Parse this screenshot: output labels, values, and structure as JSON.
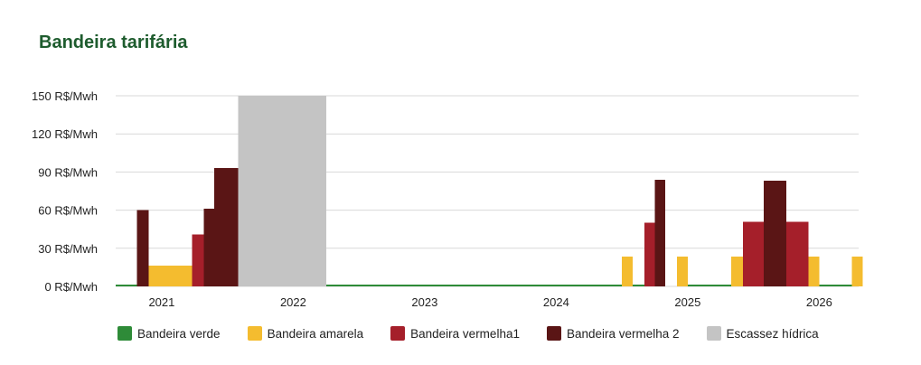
{
  "chart_data": {
    "type": "bar",
    "title": "Bandeira tarifária",
    "ylim": [
      0,
      150
    ],
    "y_ticks": [
      {
        "value": 0,
        "label": "0 R$/Mwh"
      },
      {
        "value": 30,
        "label": "30 R$/Mwh"
      },
      {
        "value": 60,
        "label": "60 R$/Mwh"
      },
      {
        "value": 90,
        "label": "90 R$/Mwh"
      },
      {
        "value": 120,
        "label": "120 R$/Mwh"
      },
      {
        "value": 150,
        "label": "150 R$/Mwh"
      }
    ],
    "x_ticks": [
      {
        "value": 2021,
        "label": "2021"
      },
      {
        "value": 2022,
        "label": "2022"
      },
      {
        "value": 2023,
        "label": "2023"
      },
      {
        "value": 2024,
        "label": "2024"
      },
      {
        "value": 2025,
        "label": "2025"
      },
      {
        "value": 2026,
        "label": "2026"
      }
    ],
    "xlim": [
      2020.65,
      2026.3
    ],
    "grid": true,
    "legend_position": "bottom",
    "series": [
      {
        "name": "Bandeira verde",
        "color": "#2e8b38",
        "segments": [
          {
            "start": 2020.65,
            "end": 2020.81,
            "value": 1.5
          },
          {
            "start": 2022.25,
            "end": 2024.5,
            "value": 1.5
          },
          {
            "start": 2024.58,
            "end": 2024.67,
            "value": 1.5
          },
          {
            "start": 2025.0,
            "end": 2025.33,
            "value": 1.5
          },
          {
            "start": 2026.0,
            "end": 2026.25,
            "value": 1.5
          }
        ]
      },
      {
        "name": "Bandeira amarela",
        "color": "#f4bc2f",
        "segments": [
          {
            "start": 2020.9,
            "end": 2021.23,
            "value": 16.5
          },
          {
            "start": 2024.5,
            "end": 2024.58,
            "value": 23.5
          },
          {
            "start": 2024.92,
            "end": 2025.0,
            "value": 23.5
          },
          {
            "start": 2025.33,
            "end": 2025.42,
            "value": 23.5
          },
          {
            "start": 2025.92,
            "end": 2026.0,
            "value": 23.5
          },
          {
            "start": 2026.25,
            "end": 2026.33,
            "value": 23.5
          }
        ]
      },
      {
        "name": "Bandeira vermelha1",
        "color": "#a51f2a",
        "segments": [
          {
            "start": 2021.23,
            "end": 2021.32,
            "value": 41
          },
          {
            "start": 2024.67,
            "end": 2024.75,
            "value": 50
          },
          {
            "start": 2025.42,
            "end": 2025.58,
            "value": 51
          },
          {
            "start": 2025.75,
            "end": 2025.92,
            "value": 51
          }
        ]
      },
      {
        "name": "Bandeira vermelha 2",
        "color": "#5a1515",
        "segments": [
          {
            "start": 2020.81,
            "end": 2020.9,
            "value": 60
          },
          {
            "start": 2021.32,
            "end": 2021.4,
            "value": 61
          },
          {
            "start": 2021.4,
            "end": 2021.49,
            "value": 93
          },
          {
            "start": 2021.49,
            "end": 2021.58,
            "value": 93
          },
          {
            "start": 2024.75,
            "end": 2024.83,
            "value": 84
          },
          {
            "start": 2025.58,
            "end": 2025.75,
            "value": 83
          }
        ]
      },
      {
        "name": "Escassez hídrica",
        "color": "#c4c4c4",
        "segments": [
          {
            "start": 2021.58,
            "end": 2022.25,
            "value": 150
          }
        ]
      }
    ]
  }
}
